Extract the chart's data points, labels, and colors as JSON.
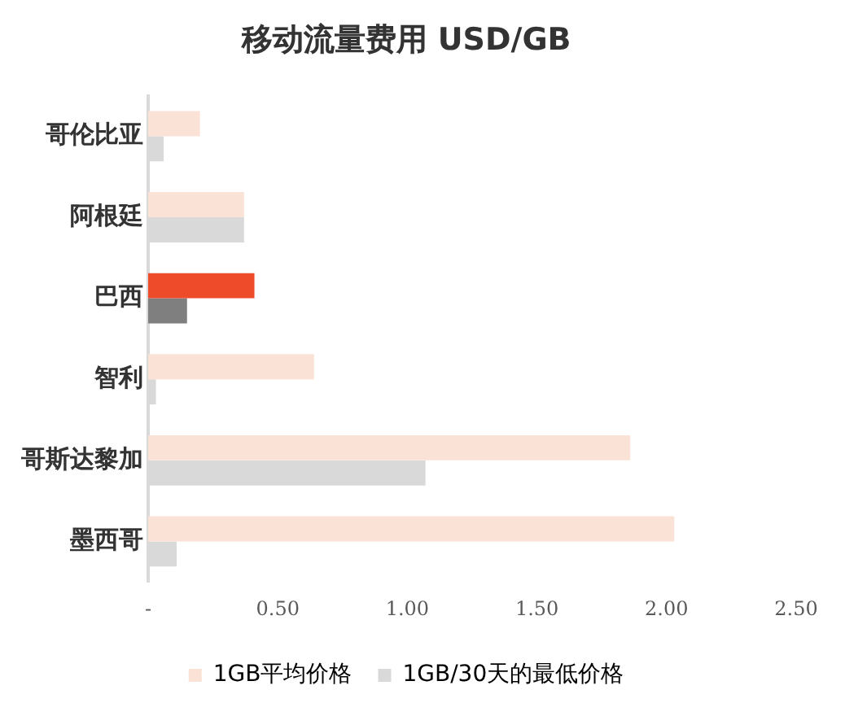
{
  "chart_data": {
    "type": "bar",
    "orientation": "horizontal",
    "title": "移动流量费用 USD/GB",
    "categories": [
      "哥伦比亚",
      "阿根廷",
      "巴西",
      "智利",
      "哥斯达黎加",
      "墨西哥"
    ],
    "series": [
      {
        "name": "1GB平均价格",
        "color": "#fae3d6",
        "colors": [
          "#fae3d6",
          "#fae3d6",
          "#ee4b2b",
          "#fae3d6",
          "#fae3d6",
          "#fae3d6"
        ],
        "values": [
          0.2,
          0.37,
          0.41,
          0.64,
          1.86,
          2.03
        ]
      },
      {
        "name": "1GB/30天的最低价格",
        "color": "#d9d9d9",
        "colors": [
          "#d9d9d9",
          "#d9d9d9",
          "#7f7f7f",
          "#d9d9d9",
          "#d9d9d9",
          "#d9d9d9"
        ],
        "values": [
          0.06,
          0.37,
          0.15,
          0.03,
          1.07,
          0.11
        ]
      }
    ],
    "xlim": [
      0,
      2.5
    ],
    "xticks": [
      {
        "value": 0,
        "label": "-"
      },
      {
        "value": 0.5,
        "label": "0.50"
      },
      {
        "value": 1,
        "label": "1.00"
      },
      {
        "value": 1.5,
        "label": "1.50"
      },
      {
        "value": 2,
        "label": "2.00"
      },
      {
        "value": 2.5,
        "label": "2.50"
      }
    ],
    "grid": false,
    "legend": "bottom"
  }
}
